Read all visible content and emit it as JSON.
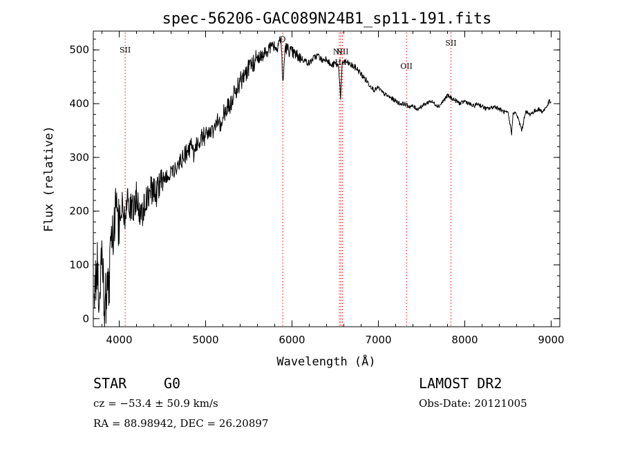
{
  "chart_data": {
    "type": "line",
    "title": "spec-56206-GAC089N24B1_sp11-191.fits",
    "xlabel": "Wavelength (Å)",
    "ylabel": "Flux (relative)",
    "xlim": [
      3700,
      9100
    ],
    "ylim": [
      -15,
      535
    ],
    "xticks": [
      4000,
      5000,
      6000,
      7000,
      8000,
      9000
    ],
    "yticks": [
      0,
      100,
      200,
      300,
      400,
      500
    ],
    "x_minor_step": 200,
    "y_minor_step": 20,
    "grid": false,
    "line_color": "#000000",
    "marker_line_color": "#ff0000",
    "spectrum": {
      "x": [
        3710,
        3740,
        3770,
        3800,
        3830,
        3860,
        3880,
        3900,
        3930,
        3960,
        4000,
        4030,
        4060,
        4100,
        4150,
        4200,
        4250,
        4300,
        4340,
        4380,
        4420,
        4470,
        4500,
        4550,
        4600,
        4650,
        4700,
        4750,
        4800,
        4850,
        4861,
        4900,
        4950,
        5000,
        5050,
        5100,
        5150,
        5175,
        5200,
        5250,
        5300,
        5350,
        5400,
        5450,
        5500,
        5550,
        5600,
        5650,
        5700,
        5750,
        5800,
        5820,
        5840,
        5860,
        5880,
        5893,
        5920,
        5960,
        6000,
        6050,
        6100,
        6150,
        6200,
        6250,
        6300,
        6350,
        6400,
        6450,
        6500,
        6540,
        6563,
        6580,
        6600,
        6650,
        6700,
        6750,
        6800,
        6850,
        6900,
        6950,
        7000,
        7050,
        7100,
        7150,
        7200,
        7250,
        7300,
        7350,
        7400,
        7450,
        7500,
        7550,
        7600,
        7650,
        7700,
        7750,
        7800,
        7850,
        7900,
        7950,
        8000,
        8050,
        8100,
        8150,
        8200,
        8250,
        8300,
        8350,
        8400,
        8450,
        8500,
        8542,
        8560,
        8600,
        8662,
        8700,
        8750,
        8800,
        8850,
        8900,
        8950,
        8980,
        9000
      ],
      "y": [
        20,
        110,
        40,
        150,
        -10,
        90,
        30,
        120,
        170,
        200,
        180,
        210,
        190,
        220,
        200,
        230,
        185,
        220,
        235,
        240,
        230,
        250,
        255,
        265,
        270,
        285,
        290,
        300,
        315,
        320,
        295,
        325,
        335,
        340,
        350,
        355,
        370,
        345,
        380,
        390,
        405,
        425,
        440,
        455,
        465,
        475,
        485,
        490,
        495,
        505,
        510,
        500,
        515,
        520,
        505,
        430,
        505,
        500,
        495,
        490,
        485,
        480,
        475,
        485,
        490,
        480,
        485,
        470,
        475,
        470,
        410,
        470,
        480,
        475,
        470,
        465,
        455,
        445,
        435,
        425,
        430,
        420,
        415,
        410,
        405,
        400,
        400,
        395,
        395,
        390,
        395,
        400,
        405,
        400,
        395,
        405,
        415,
        410,
        405,
        400,
        405,
        400,
        395,
        400,
        395,
        390,
        392,
        395,
        390,
        385,
        382,
        345,
        385,
        380,
        350,
        385,
        380,
        385,
        390,
        385,
        395,
        405,
        400
      ]
    },
    "line_markers": [
      {
        "label": "SII",
        "x": 4069,
        "label_y": 495
      },
      {
        "label": "D",
        "x": 5893,
        "label_y": 515
      },
      {
        "label": "NII",
        "x": 6548,
        "label_y": 492
      },
      {
        "label": "Hα",
        "x": 6563,
        "label_y": 472
      },
      {
        "label": "NII",
        "x": 6583,
        "label_y": 492
      },
      {
        "label": "OII",
        "x": 7325,
        "label_y": 465
      },
      {
        "label": "SII",
        "x": 7840,
        "label_y": 508
      }
    ]
  },
  "info": {
    "object_class": "STAR",
    "subclass": "G0",
    "cz": "cz = −53.4 ± 50.9 km/s",
    "coords": "RA =  88.98942, DEC =  26.20897",
    "survey": "LAMOST DR2",
    "obs_date": "Obs-Date: 20121005"
  }
}
